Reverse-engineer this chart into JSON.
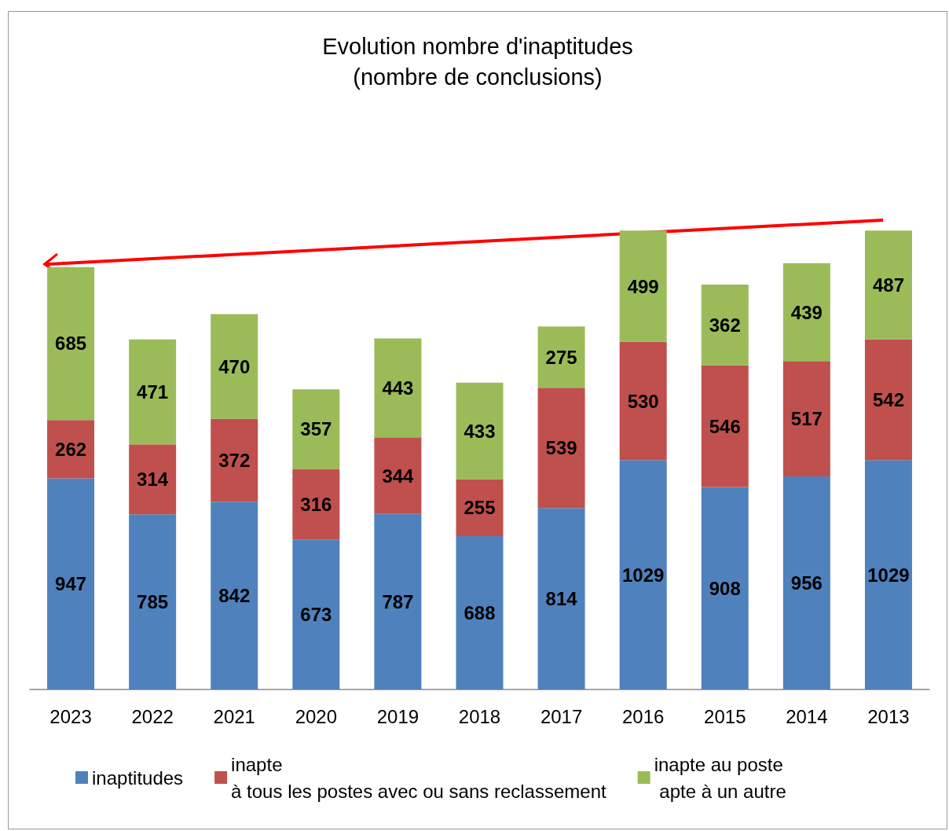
{
  "chart_data": {
    "type": "bar",
    "title": "Evolution nombre d'inaptitudes",
    "subtitle": "(nombre de conclusions)",
    "categories": [
      "2023",
      "2022",
      "2021",
      "2020",
      "2019",
      "2018",
      "2017",
      "2016",
      "2015",
      "2014",
      "2013"
    ],
    "stacked": true,
    "data_labels": true,
    "legend": "bottom",
    "series": [
      {
        "name": "inaptitudes",
        "color": "#4f81bd",
        "values": [
          947,
          785,
          842,
          673,
          787,
          688,
          814,
          1029,
          908,
          956,
          1029
        ]
      },
      {
        "name": "inapte\nà tous les postes avec ou sans reclassement",
        "color": "#c0504d",
        "values": [
          262,
          314,
          372,
          316,
          344,
          255,
          539,
          530,
          546,
          517,
          542
        ]
      },
      {
        "name": "inapte au poste\n apte à un autre",
        "color": "#9bbb59",
        "values": [
          685,
          471,
          470,
          357,
          443,
          433,
          275,
          499,
          362,
          439,
          487
        ]
      }
    ]
  }
}
